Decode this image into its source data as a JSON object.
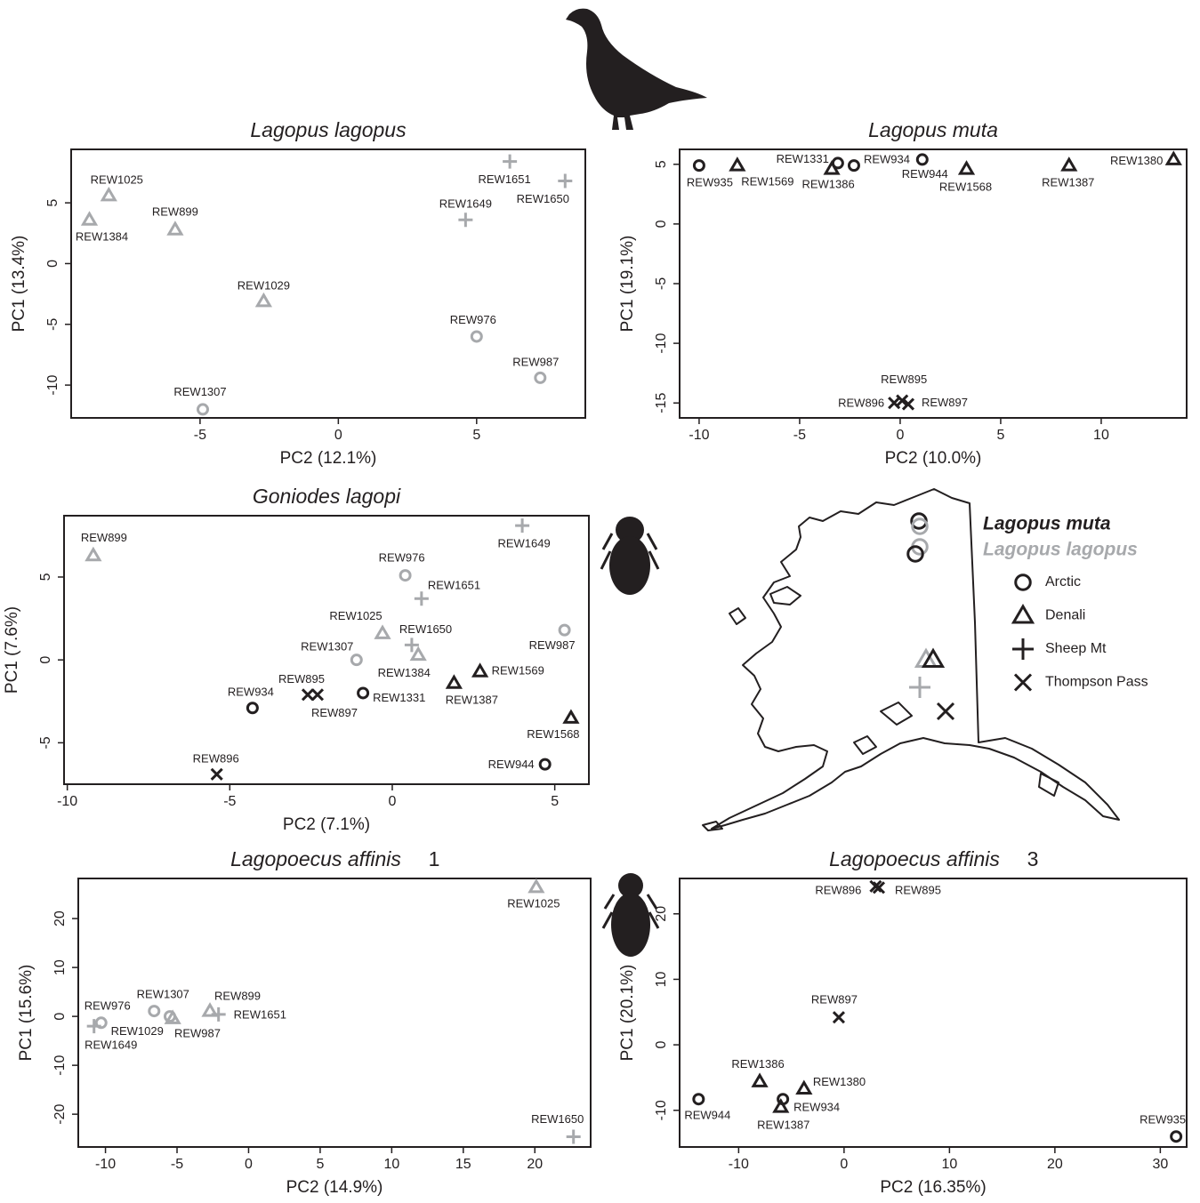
{
  "chart_data": [
    {
      "type": "scatter",
      "title": "Lagopus lagopus",
      "xlabel": "PC2 (12.1%)",
      "ylabel": "PC1 (13.4%)",
      "xlim": [
        -9.66,
        8.93
      ],
      "ylim": [
        -12.7,
        9.4
      ],
      "xticks": [
        -5,
        0,
        5
      ],
      "yticks": [
        -10,
        -5,
        0,
        5
      ],
      "series": [
        {
          "marker": "triangle",
          "color": "#a7a9ac",
          "labels": [
            "REW1025",
            "REW1384",
            "REW899",
            "REW1029"
          ],
          "x": [
            -8.3,
            -9.0,
            -5.9,
            -2.7
          ],
          "values": [
            5.6,
            3.6,
            2.8,
            -3.1
          ]
        },
        {
          "marker": "circle",
          "color": "#a7a9ac",
          "labels": [
            "REW1307",
            "REW976",
            "REW987"
          ],
          "x": [
            -4.9,
            5.0,
            7.3
          ],
          "values": [
            -12.0,
            -6.0,
            -9.4
          ]
        },
        {
          "marker": "plus",
          "color": "#a7a9ac",
          "labels": [
            "REW1649",
            "REW1651",
            "REW1650"
          ],
          "x": [
            4.6,
            6.2,
            8.2
          ],
          "values": [
            3.6,
            8.4,
            6.8
          ]
        }
      ]
    },
    {
      "type": "scatter",
      "title": "Lagopus muta",
      "xlabel": "PC2 (10.0%)",
      "ylabel": "PC1 (19.1%)",
      "xlim": [
        -10.97,
        14.25
      ],
      "ylim": [
        -16.25,
        6.25
      ],
      "xticks": [
        -10,
        -5,
        0,
        5,
        10
      ],
      "yticks": [
        -15,
        -10,
        -5,
        0,
        5
      ],
      "series": [
        {
          "marker": "circle",
          "color": "#231f20",
          "labels": [
            "REW935",
            "REW1331",
            "REW934",
            "REW944"
          ],
          "x": [
            -10.0,
            -3.1,
            -2.3,
            1.1
          ],
          "values": [
            4.9,
            5.1,
            4.9,
            5.4
          ]
        },
        {
          "marker": "triangle",
          "color": "#231f20",
          "labels": [
            "REW1569",
            "REW1386",
            "REW1568",
            "REW1387",
            "REW1380"
          ],
          "x": [
            -8.1,
            -3.4,
            3.3,
            8.4,
            13.6
          ],
          "values": [
            4.9,
            4.6,
            4.6,
            4.9,
            5.4
          ]
        },
        {
          "marker": "x",
          "color": "#231f20",
          "labels": [
            "REW896",
            "REW895",
            "REW897"
          ],
          "x": [
            -0.3,
            0.1,
            0.4
          ],
          "values": [
            -15.0,
            -14.8,
            -15.1
          ]
        }
      ]
    },
    {
      "type": "scatter",
      "title": "Goniodes lagopi",
      "xlabel": "PC2 (7.1%)",
      "ylabel": "PC1 (7.6%)",
      "xlim": [
        -10.1,
        6.05
      ],
      "ylim": [
        -7.5,
        8.7
      ],
      "xticks": [
        -10,
        -5,
        0,
        5
      ],
      "yticks": [
        -5,
        0,
        5
      ],
      "series": [
        {
          "marker": "triangle",
          "color": "#a7a9ac",
          "labels": [
            "REW899",
            "REW1025",
            "REW1384"
          ],
          "x": [
            -9.2,
            -0.3,
            0.8
          ],
          "values": [
            6.3,
            1.6,
            0.3
          ]
        },
        {
          "marker": "circle",
          "color": "#a7a9ac",
          "labels": [
            "REW976",
            "REW987",
            "REW1307"
          ],
          "x": [
            0.4,
            5.3,
            -1.1
          ],
          "values": [
            5.1,
            1.8,
            0.0
          ]
        },
        {
          "marker": "plus",
          "color": "#a7a9ac",
          "labels": [
            "REW1649",
            "REW1651",
            "REW1650"
          ],
          "x": [
            4.0,
            0.9,
            0.6
          ],
          "values": [
            8.1,
            3.7,
            0.9
          ]
        },
        {
          "marker": "triangle",
          "color": "#231f20",
          "labels": [
            "REW1569",
            "REW1387",
            "REW1568"
          ],
          "x": [
            2.7,
            1.9,
            5.5
          ],
          "values": [
            -0.7,
            -1.4,
            -3.5
          ]
        },
        {
          "marker": "circle",
          "color": "#231f20",
          "labels": [
            "REW1331",
            "REW934",
            "REW944"
          ],
          "x": [
            -0.9,
            -4.3,
            4.7
          ],
          "values": [
            -2.0,
            -2.9,
            -6.3
          ]
        },
        {
          "marker": "x",
          "color": "#231f20",
          "labels": [
            "REW895",
            "REW897",
            "REW896"
          ],
          "x": [
            -2.6,
            -2.3,
            -5.4
          ],
          "values": [
            -2.1,
            -2.1,
            -6.9
          ]
        }
      ]
    },
    {
      "type": "scatter",
      "title": "Lagopoecus affinis",
      "subtitle": "1",
      "xlabel": "PC2 (14.9%)",
      "ylabel": "PC1 (15.6%)",
      "xlim": [
        -11.9,
        23.9
      ],
      "ylim": [
        -26.7,
        28.2
      ],
      "xticks": [
        -10,
        -5,
        0,
        5,
        10,
        15,
        20
      ],
      "yticks": [
        -20,
        -10,
        0,
        10,
        20
      ],
      "series": [
        {
          "marker": "triangle",
          "color": "#a7a9ac",
          "labels": [
            "REW1025",
            "REW1029",
            "REW899"
          ],
          "x": [
            20.1,
            -5.3,
            -2.7
          ],
          "values": [
            26.4,
            -0.4,
            1.1
          ]
        },
        {
          "marker": "circle",
          "color": "#a7a9ac",
          "labels": [
            "REW976",
            "REW1307",
            "REW987"
          ],
          "x": [
            -10.3,
            -6.6,
            -5.5
          ],
          "values": [
            -1.3,
            1.1,
            0.0
          ]
        },
        {
          "marker": "plus",
          "color": "#a7a9ac",
          "labels": [
            "REW1649",
            "REW1651",
            "REW1650"
          ],
          "x": [
            -10.8,
            -2.1,
            22.7
          ],
          "values": [
            -2.0,
            0.4,
            -24.6
          ]
        }
      ]
    },
    {
      "type": "scatter",
      "title": "Lagopoecus affinis",
      "subtitle": "3",
      "xlabel": "PC2 (16.35%)",
      "ylabel": "PC1 (20.1%)",
      "xlim": [
        -15.6,
        32.5
      ],
      "ylim": [
        -15.6,
        25.4
      ],
      "xticks": [
        -10,
        0,
        10,
        20,
        30
      ],
      "yticks": [
        -10,
        0,
        10,
        20
      ],
      "series": [
        {
          "marker": "x",
          "color": "#231f20",
          "labels": [
            "REW896",
            "REW895",
            "REW897"
          ],
          "x": [
            3.0,
            3.3,
            -0.5
          ],
          "values": [
            24.2,
            24.0,
            4.2
          ]
        },
        {
          "marker": "triangle",
          "color": "#231f20",
          "labels": [
            "REW1386",
            "REW1380",
            "REW1387"
          ],
          "x": [
            -8.0,
            -3.8,
            -6.0
          ],
          "values": [
            -5.6,
            -6.7,
            -9.5
          ]
        },
        {
          "marker": "circle",
          "color": "#231f20",
          "labels": [
            "REW944",
            "REW934",
            "REW935"
          ],
          "x": [
            -13.8,
            -5.8,
            31.5
          ],
          "values": [
            -8.3,
            -8.3,
            -14.0
          ]
        }
      ]
    }
  ],
  "legend": {
    "hosts": [
      {
        "name": "Lagopus muta",
        "color": "#231f20"
      },
      {
        "name": "Lagopus lagopus",
        "color": "#a7a9ac"
      }
    ],
    "populations": [
      {
        "name": "Arctic",
        "marker": "circle"
      },
      {
        "name": "Denali",
        "marker": "triangle"
      },
      {
        "name": "Sheep Mt",
        "marker": "plus"
      },
      {
        "name": "Thompson Pass",
        "marker": "x"
      }
    ]
  }
}
